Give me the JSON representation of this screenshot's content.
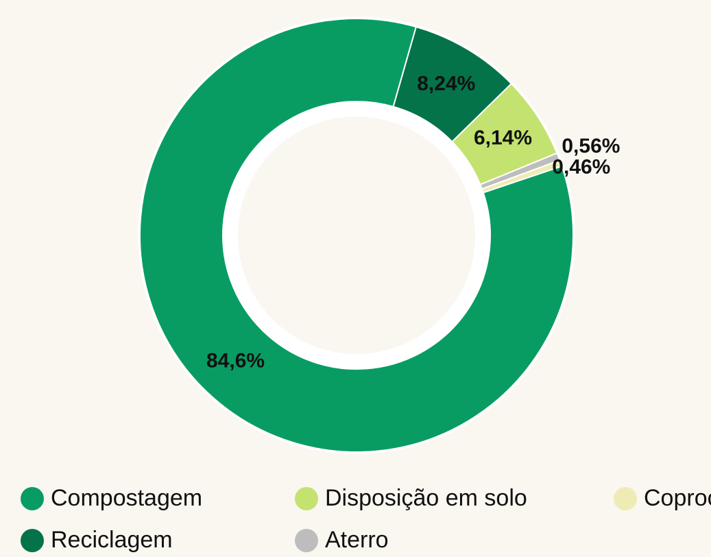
{
  "chart_data": {
    "type": "donut",
    "categories": [
      "Compostagem",
      "Reciclagem",
      "Disposição em solo",
      "Aterro",
      "Coprocessamento"
    ],
    "values": [
      84.6,
      8.24,
      6.14,
      0.56,
      0.46
    ],
    "value_labels": [
      "84,6%",
      "8,24%",
      "6,14%",
      "0,56%",
      "0,46%"
    ],
    "colors": [
      "#089c63",
      "#04734a",
      "#c3e26f",
      "#bdbdbd",
      "#eeebb5"
    ],
    "legend": "bottom"
  }
}
